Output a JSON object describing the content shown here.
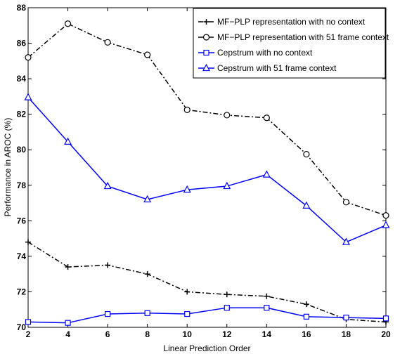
{
  "chart_data": {
    "type": "line",
    "title": "",
    "xlabel": "Linear Prediction Order",
    "ylabel": "Performance in AROC (%)",
    "xlim": [
      2,
      20
    ],
    "ylim": [
      70,
      88
    ],
    "x_ticks": [
      2,
      4,
      6,
      8,
      10,
      12,
      14,
      16,
      18,
      20
    ],
    "y_ticks": [
      70,
      72,
      74,
      76,
      78,
      80,
      82,
      84,
      86,
      88
    ],
    "grid": false,
    "legend_position": "top-right",
    "x": [
      2,
      4,
      6,
      8,
      10,
      12,
      14,
      16,
      18,
      20
    ],
    "series": [
      {
        "name": "MF−PLP representation with no context",
        "color": "#000000",
        "line_style": "dash-dot",
        "marker": "plus",
        "values": [
          74.8,
          73.4,
          73.5,
          73.0,
          72.0,
          71.85,
          71.75,
          71.3,
          70.45,
          70.3
        ]
      },
      {
        "name": "MF−PLP representation with 51 frame context",
        "color": "#000000",
        "line_style": "dash-dot",
        "marker": "circle",
        "values": [
          85.2,
          87.1,
          86.05,
          85.35,
          82.25,
          81.95,
          81.8,
          79.75,
          77.05,
          76.3
        ]
      },
      {
        "name": "Cepstrum with no context",
        "color": "#0000ff",
        "line_style": "solid",
        "marker": "square",
        "values": [
          70.3,
          70.25,
          70.75,
          70.8,
          70.75,
          71.1,
          71.1,
          70.6,
          70.55,
          70.5
        ]
      },
      {
        "name": "Cepstrum with 51 frame context",
        "color": "#0000ff",
        "line_style": "solid",
        "marker": "triangle",
        "values": [
          82.95,
          80.45,
          77.95,
          77.2,
          77.75,
          77.95,
          78.6,
          76.85,
          74.8,
          75.75
        ]
      }
    ]
  }
}
